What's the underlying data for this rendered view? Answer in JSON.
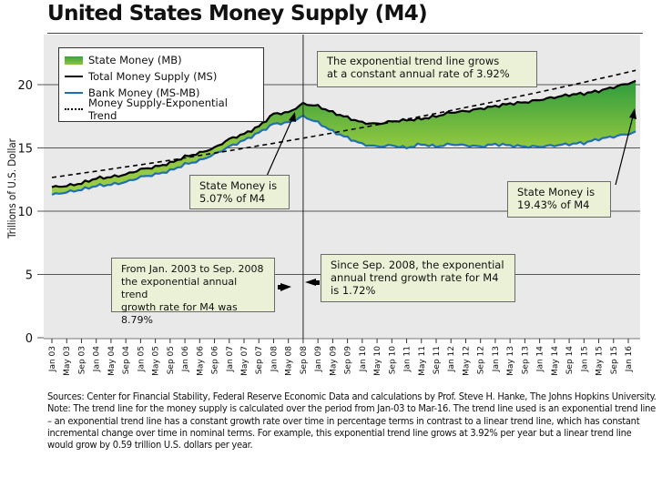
{
  "title": "United States Money Supply (M4)",
  "chart_data": {
    "type": "area",
    "title": "United States Money Supply (M4)",
    "xlabel": "",
    "ylabel": "Trillions of U.S. Dollar",
    "ylim": [
      0,
      24
    ],
    "yticks": [
      0,
      5,
      10,
      15,
      20
    ],
    "grid": "horizontal",
    "x_tick_labels": [
      "Jan 03",
      "May 03",
      "Sep 03",
      "Jan 04",
      "May 04",
      "Sep 04",
      "Jan 05",
      "May 05",
      "Sep 05",
      "Jan 06",
      "May 06",
      "Sep 06",
      "Jan 07",
      "May 07",
      "Sep 07",
      "Jan 08",
      "May 08",
      "Sep 08",
      "Jan 09",
      "May 09",
      "Sep 09",
      "Jan 10",
      "May 10",
      "Sep 10",
      "Jan 11",
      "May 11",
      "Sep 11",
      "Jan 12",
      "May 12",
      "Sep 12",
      "Jan 13",
      "May 13",
      "Sep 13",
      "Jan 14",
      "May 14",
      "Sep 14",
      "Jan 15",
      "May 15",
      "Sep 15",
      "Jan 16"
    ],
    "x_range": [
      "Jan 03",
      "Mar 16"
    ],
    "x_months_from_jan03": [
      0,
      4,
      8,
      12,
      16,
      20,
      24,
      28,
      32,
      36,
      40,
      44,
      48,
      52,
      56,
      60,
      64,
      68,
      72,
      76,
      80,
      84,
      88,
      92,
      96,
      100,
      104,
      108,
      112,
      116,
      120,
      124,
      128,
      132,
      136,
      140,
      144,
      148,
      152,
      156,
      158
    ],
    "legend": {
      "position": "top-left",
      "entries": [
        {
          "label": "State Money (MB)",
          "style": "green-fill"
        },
        {
          "label": "Total Money Supply (MS)",
          "style": "black-line"
        },
        {
          "label": "Bank Money (MS-MB)",
          "style": "blue-line"
        },
        {
          "label": "Money Supply-Exponential Trend",
          "style": "dotted-line"
        }
      ]
    },
    "series": [
      {
        "name": "Total Money Supply (MS)",
        "color": "#000000",
        "values": [
          11.9,
          12.0,
          12.2,
          12.6,
          12.7,
          12.9,
          13.3,
          13.5,
          13.8,
          14.3,
          14.6,
          15.0,
          15.7,
          16.1,
          16.7,
          17.7,
          17.8,
          18.5,
          18.3,
          17.8,
          17.4,
          17.0,
          16.9,
          17.1,
          17.2,
          17.3,
          17.5,
          17.8,
          17.9,
          18.1,
          18.3,
          18.5,
          18.6,
          18.8,
          19.0,
          19.2,
          19.3,
          19.5,
          19.8,
          20.1,
          20.3
        ]
      },
      {
        "name": "Bank Money (MS-MB)",
        "color": "#1f6fb2",
        "values": [
          11.3,
          11.5,
          11.7,
          12.0,
          12.1,
          12.3,
          12.7,
          12.9,
          13.2,
          13.7,
          14.0,
          14.5,
          15.1,
          15.6,
          16.2,
          16.9,
          17.0,
          17.5,
          17.0,
          16.3,
          15.8,
          15.3,
          15.1,
          15.2,
          15.0,
          15.3,
          15.1,
          15.3,
          15.2,
          15.1,
          15.3,
          15.2,
          15.1,
          15.1,
          15.2,
          15.3,
          15.4,
          15.7,
          15.9,
          16.1,
          16.3
        ]
      },
      {
        "name": "Money Supply-Exponential Trend",
        "color": "#000000",
        "style": "dashed",
        "values": [
          12.66,
          12.83,
          13.0,
          13.16,
          13.33,
          13.5,
          13.67,
          13.85,
          14.03,
          14.21,
          14.4,
          14.59,
          14.78,
          14.97,
          15.17,
          15.37,
          15.57,
          15.77,
          15.98,
          16.19,
          16.4,
          16.61,
          16.83,
          17.05,
          17.27,
          17.5,
          17.73,
          17.96,
          18.2,
          18.43,
          18.67,
          18.92,
          19.17,
          19.42,
          19.67,
          19.93,
          20.19,
          20.46,
          20.72,
          20.99,
          21.13
        ]
      }
    ],
    "state_money_fill": {
      "name": "State Money (MB)",
      "between": [
        "Bank Money (MS-MB)",
        "Total Money Supply (MS)"
      ],
      "colors": [
        "#2e9b3e",
        "#8dc63f"
      ]
    },
    "vertical_marker": {
      "at": "Sep 08"
    },
    "annotations": [
      {
        "id": "trend_note",
        "text": [
          "The exponential trend line grows",
          "at a constant annual rate of 3.92%"
        ]
      },
      {
        "id": "state_2008",
        "text": [
          "State Money is",
          "5.07% of M4"
        ]
      },
      {
        "id": "state_2016",
        "text": [
          "State Money is",
          "19.43% of M4"
        ]
      },
      {
        "id": "pre_2008",
        "text": [
          "From Jan. 2003 to Sep. 2008",
          "the exponential annual trend",
          "growth rate for M4 was 8.79%"
        ]
      },
      {
        "id": "post_2008",
        "text": [
          "Since Sep. 2008, the exponential",
          "annual trend growth rate for M4",
          "is 1.72%"
        ]
      }
    ]
  },
  "footer": {
    "sources": "Sources: Center for Financial Stability, Federal Reserve Economic Data and calculations by Prof. Steve H. Hanke, The Johns Hopkins University.",
    "note": "Note: The trend line for the money supply is calculated over the period from Jan-03 to Mar-16. The trend line used is an exponential trend line – an exponential trend line has a constant growth rate over time in percentage terms in contrast to a linear trend line, which has constant incremental change over time in nominal terms. For example, this exponential trend line grows at 3.92% per year but a linear trend line would grow by 0.59 trillion U.S. dollars per year."
  }
}
